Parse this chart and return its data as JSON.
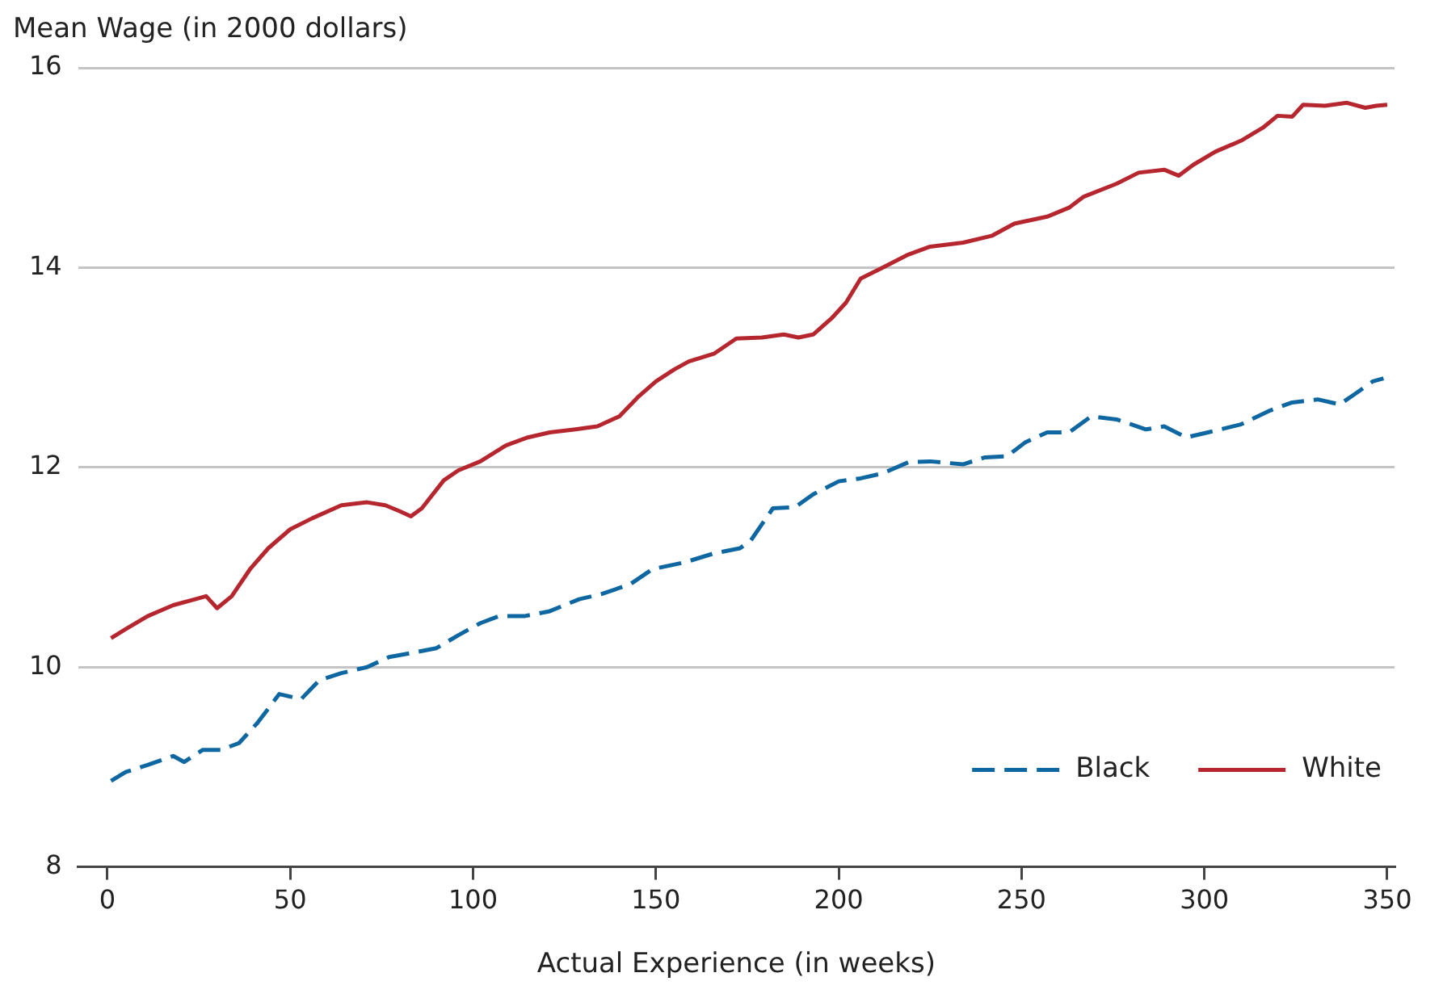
{
  "chart_data": {
    "type": "line",
    "ylabel": "Mean Wage (in 2000 dollars)",
    "xlabel": "Actual Experience (in weeks)",
    "xlim": [
      -8,
      352
    ],
    "xticks": [
      0,
      50,
      100,
      150,
      200,
      250,
      300,
      350
    ],
    "ylim": [
      8,
      16
    ],
    "yticks": [
      8,
      10,
      12,
      14,
      16
    ],
    "grid": "y",
    "legend": "bottom right",
    "series": [
      {
        "name": "Black",
        "color": "#0f67a1",
        "line_style": "dashed",
        "x": [
          1,
          5,
          11,
          18,
          21,
          26,
          31,
          36,
          41,
          47,
          53,
          58,
          64,
          71,
          77,
          83,
          90,
          96,
          102,
          107,
          114,
          121,
          129,
          135,
          143,
          149,
          158,
          166,
          173,
          176,
          182,
          188,
          193,
          200,
          206,
          212,
          219,
          225,
          234,
          240,
          246,
          251,
          257,
          263,
          269,
          276,
          284,
          289,
          295,
          301,
          310,
          318,
          324,
          331,
          337,
          341,
          346,
          349
        ],
        "values": [
          8.86,
          8.95,
          9.02,
          9.11,
          9.05,
          9.17,
          9.17,
          9.24,
          9.44,
          9.73,
          9.68,
          9.87,
          9.94,
          10.0,
          10.1,
          10.14,
          10.19,
          10.32,
          10.44,
          10.51,
          10.51,
          10.56,
          10.68,
          10.73,
          10.83,
          10.98,
          11.05,
          11.14,
          11.19,
          11.27,
          11.59,
          11.6,
          11.73,
          11.86,
          11.89,
          11.94,
          12.05,
          12.06,
          12.03,
          12.1,
          12.11,
          12.25,
          12.35,
          12.35,
          12.51,
          12.48,
          12.38,
          12.41,
          12.3,
          12.35,
          12.43,
          12.57,
          12.65,
          12.68,
          12.63,
          12.73,
          12.86,
          12.89
        ]
      },
      {
        "name": "White",
        "color": "#b5262e",
        "line_style": "solid",
        "x": [
          1,
          5,
          11,
          18,
          24,
          27,
          30,
          34,
          39,
          44,
          50,
          56,
          64,
          71,
          76,
          80,
          83,
          86,
          92,
          96,
          102,
          109,
          115,
          121,
          128,
          134,
          140,
          145,
          150,
          155,
          159,
          166,
          172,
          179,
          185,
          189,
          193,
          198,
          202,
          206,
          212,
          219,
          225,
          234,
          242,
          248,
          257,
          263,
          267,
          276,
          282,
          289,
          293,
          297,
          303,
          310,
          316,
          320,
          324,
          327,
          333,
          339,
          344,
          347,
          350
        ],
        "values": [
          10.29,
          10.38,
          10.51,
          10.62,
          10.68,
          10.71,
          10.59,
          10.71,
          10.98,
          11.19,
          11.38,
          11.49,
          11.62,
          11.65,
          11.62,
          11.56,
          11.51,
          11.59,
          11.87,
          11.97,
          12.06,
          12.22,
          12.3,
          12.35,
          12.38,
          12.41,
          12.51,
          12.7,
          12.86,
          12.98,
          13.06,
          13.14,
          13.29,
          13.3,
          13.33,
          13.3,
          13.33,
          13.49,
          13.65,
          13.89,
          14.0,
          14.13,
          14.21,
          14.25,
          14.32,
          14.44,
          14.51,
          14.6,
          14.71,
          14.84,
          14.95,
          14.98,
          14.92,
          15.03,
          15.16,
          15.27,
          15.4,
          15.52,
          15.51,
          15.63,
          15.62,
          15.65,
          15.6,
          15.62,
          15.63
        ]
      }
    ]
  }
}
